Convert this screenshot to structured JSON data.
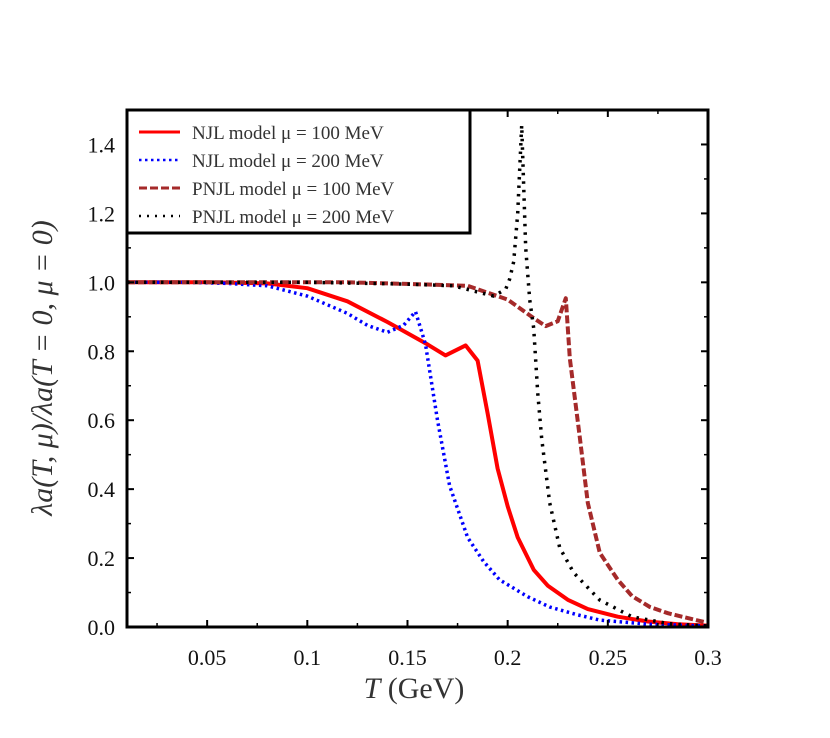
{
  "chart_data": {
    "type": "line",
    "title": "",
    "xlabel": "T (GeV)",
    "xlabel_parts": {
      "var": "T",
      "unit": " (GeV)"
    },
    "ylabel": "λa(T, μ)/λa(T = 0, μ = 0)",
    "xlim": [
      0.01,
      0.3
    ],
    "ylim": [
      0,
      1.5
    ],
    "xticks": [
      0.05,
      0.1,
      0.15,
      0.2,
      0.25,
      0.3
    ],
    "xtick_labels": [
      "0.05",
      "0.1",
      "0.15",
      "0.2",
      "0.25",
      "0.3"
    ],
    "yticks": [
      0.0,
      0.2,
      0.4,
      0.6,
      0.8,
      1.0,
      1.2,
      1.4
    ],
    "ytick_labels": [
      "0.0",
      "0.2",
      "0.4",
      "0.6",
      "0.8",
      "1.0",
      "1.2",
      "1.4"
    ],
    "grid": false,
    "legend_position": "top-left",
    "series": [
      {
        "name": "NJL model μ = 100 MeV",
        "color": "#ff0000",
        "style": "solid",
        "x": [
          0.01,
          0.05,
          0.08,
          0.1,
          0.12,
          0.14,
          0.16,
          0.169,
          0.179,
          0.185,
          0.19,
          0.195,
          0.2,
          0.205,
          0.213,
          0.22,
          0.23,
          0.24,
          0.255,
          0.27,
          0.285,
          0.3
        ],
        "y": [
          1.0,
          1.0,
          0.997,
          0.983,
          0.945,
          0.885,
          0.82,
          0.788,
          0.817,
          0.773,
          0.62,
          0.46,
          0.35,
          0.26,
          0.166,
          0.12,
          0.079,
          0.052,
          0.03,
          0.016,
          0.008,
          0.004
        ]
      },
      {
        "name": "NJL model μ = 200 MeV",
        "color": "#0000ff",
        "style": "dotted",
        "x": [
          0.01,
          0.04,
          0.06,
          0.08,
          0.1,
          0.12,
          0.13,
          0.14,
          0.148,
          0.154,
          0.159,
          0.165,
          0.171,
          0.18,
          0.188,
          0.196,
          0.21,
          0.221,
          0.235,
          0.246,
          0.27,
          0.3
        ],
        "y": [
          1.0,
          1.0,
          0.997,
          0.99,
          0.96,
          0.91,
          0.875,
          0.855,
          0.875,
          0.915,
          0.82,
          0.6,
          0.41,
          0.26,
          0.19,
          0.137,
          0.088,
          0.058,
          0.035,
          0.02,
          0.008,
          0.003
        ]
      },
      {
        "name": "PNJL model μ = 100 MeV",
        "color": "#a52a2a",
        "style": "dashed",
        "x": [
          0.01,
          0.086,
          0.12,
          0.153,
          0.18,
          0.2,
          0.213,
          0.219,
          0.225,
          0.229,
          0.231,
          0.236,
          0.24,
          0.246,
          0.255,
          0.262,
          0.271,
          0.28,
          0.287,
          0.3
        ],
        "y": [
          1.0,
          1.0,
          1.0,
          0.995,
          0.99,
          0.95,
          0.896,
          0.873,
          0.887,
          0.954,
          0.78,
          0.55,
          0.36,
          0.215,
          0.137,
          0.09,
          0.058,
          0.04,
          0.03,
          0.012
        ]
      },
      {
        "name": "PNJL model μ = 200 MeV",
        "color": "#000000",
        "style": "dotted",
        "x": [
          0.01,
          0.1,
          0.15,
          0.173,
          0.193,
          0.199,
          0.201,
          0.203,
          0.205,
          0.207,
          0.209,
          0.211,
          0.213,
          0.215,
          0.217,
          0.221,
          0.226,
          0.233,
          0.246,
          0.262,
          0.28,
          0.3
        ],
        "y": [
          1.0,
          1.0,
          0.995,
          0.99,
          0.96,
          0.98,
          1.01,
          1.06,
          1.2,
          1.456,
          1.1,
          0.95,
          0.867,
          0.68,
          0.546,
          0.36,
          0.23,
          0.157,
          0.078,
          0.03,
          0.01,
          0.003
        ]
      }
    ]
  }
}
